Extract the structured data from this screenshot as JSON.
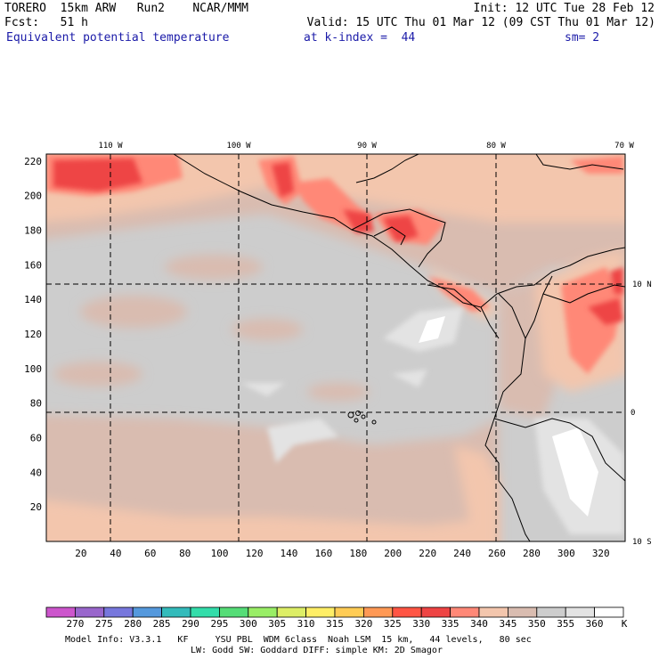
{
  "header": {
    "line1_left": "TORERO  15km ARW   Run2    NCAR/MMM",
    "line1_right": "Init: 12 UTC Tue 28 Feb 12",
    "line2_left": "Fcst:   51 h",
    "line2_right": "Valid: 15 UTC Thu 01 Mar 12 (09 CST Thu 01 Mar 12)",
    "field": "Equivalent potential temperature",
    "level": "at k-index =  44",
    "smooth": "sm= 2"
  },
  "map": {
    "lon_labels": [
      "110 W",
      "100 W",
      "90 W",
      "80 W",
      "70 W"
    ],
    "lat_labels": [
      "10 N",
      "0",
      "10 S"
    ],
    "y_ticks": [
      "220",
      "200",
      "180",
      "160",
      "140",
      "120",
      "100",
      "80",
      "60",
      "40",
      "20"
    ],
    "x_ticks": [
      "20",
      "40",
      "60",
      "80",
      "100",
      "120",
      "140",
      "160",
      "180",
      "200",
      "220",
      "240",
      "260",
      "280",
      "300",
      "320"
    ]
  },
  "colorbar": {
    "unit": "K",
    "levels": [
      "270",
      "275",
      "280",
      "285",
      "290",
      "295",
      "300",
      "305",
      "310",
      "315",
      "320",
      "325",
      "330",
      "335",
      "340",
      "345",
      "350",
      "355",
      "360"
    ],
    "colors": [
      "#cc55cc",
      "#9966cc",
      "#7777dd",
      "#5599dd",
      "#33bbbb",
      "#33ddaa",
      "#55dd77",
      "#99ee66",
      "#ddee66",
      "#ffee66",
      "#ffcc55",
      "#ff9955",
      "#ff5544",
      "#ee4444",
      "#ff8877",
      "#f3c6ad",
      "#d9bcb0",
      "#cdcdcd",
      "#e3e3e3",
      "#ffffff"
    ]
  },
  "footer": {
    "line1": "Model Info: V3.3.1   KF     YSU PBL  WDM 6class  Noah LSM  15 km,   44 levels,   80 sec",
    "line2": "LW: Godd SW: Goddard DIFF: simple KM: 2D Smagor"
  }
}
